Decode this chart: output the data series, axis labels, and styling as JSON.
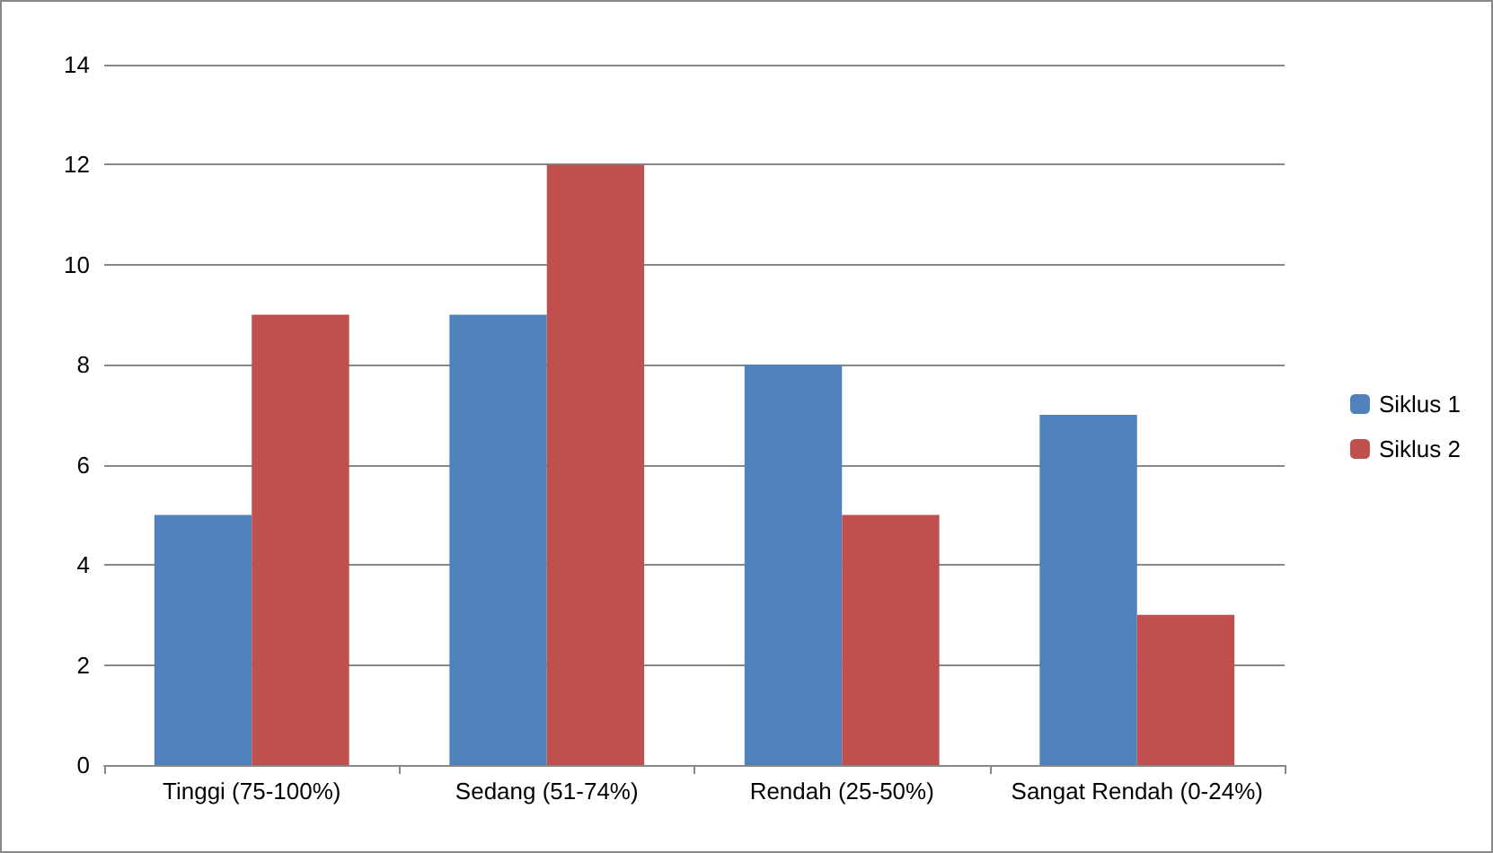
{
  "chart_data": {
    "type": "bar",
    "categories": [
      "Tinggi (75-100%)",
      "Sedang (51-74%)",
      "Rendah (25-50%)",
      "Sangat Rendah (0-24%)"
    ],
    "series": [
      {
        "name": "Siklus 1",
        "color": "#4f81bd",
        "values": [
          5,
          9,
          8,
          7
        ]
      },
      {
        "name": "Siklus 2",
        "color": "#c0504d",
        "values": [
          9,
          12,
          5,
          3
        ]
      }
    ],
    "ylim": [
      0,
      14
    ],
    "yticks": [
      0,
      2,
      4,
      6,
      8,
      10,
      12,
      14
    ],
    "grid": "y",
    "legend": "right"
  }
}
